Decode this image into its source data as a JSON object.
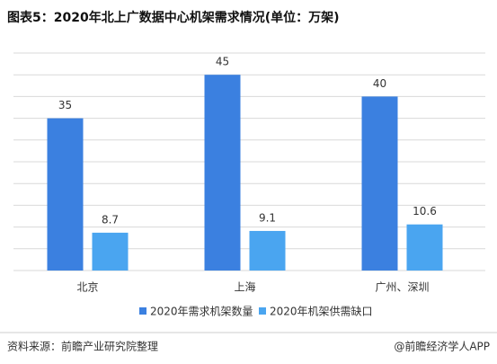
{
  "chart_data": {
    "type": "bar",
    "title": "图表5：2020年北上广数据中心机架需求情况(单位：万架)",
    "categories": [
      "北京",
      "上海",
      "广州、深圳"
    ],
    "series": [
      {
        "name": "2020年需求机架数量",
        "color": "#3b80e0",
        "values": [
          35,
          45,
          40
        ]
      },
      {
        "name": "2020年机架供需缺口",
        "color": "#4aa5f0",
        "values": [
          8.7,
          9.1,
          10.6
        ]
      }
    ],
    "ylim": [
      0,
      50
    ],
    "yticks": [
      0,
      5,
      10,
      15,
      20,
      25,
      30,
      35,
      40,
      45,
      50
    ],
    "grid": true,
    "source": "资料来源：前瞻产业研究院整理",
    "brand": "@前瞻经济学人APP"
  }
}
